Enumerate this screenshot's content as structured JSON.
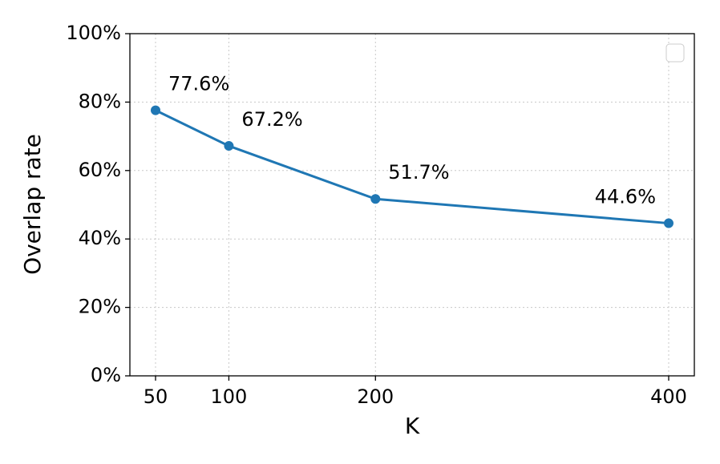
{
  "chart_data": {
    "type": "line",
    "x_label": "K",
    "y_label": "Overlap rate",
    "x": [
      50,
      100,
      200,
      400
    ],
    "series": [
      {
        "color": "#1f77b4",
        "values": [
          77.6,
          67.2,
          51.7,
          44.6
        ],
        "value_labels": [
          "77.6%",
          "67.2%",
          "51.7%",
          "44.6%"
        ]
      }
    ],
    "xlim": [
      32.5,
      417.5
    ],
    "xticks": [
      50,
      100,
      200,
      400
    ],
    "ylim": [
      0,
      100
    ],
    "yticks": [
      {
        "value": 0,
        "label": "0%"
      },
      {
        "value": 20,
        "label": "20%"
      },
      {
        "value": 40,
        "label": "40%"
      },
      {
        "value": 60,
        "label": "60%"
      },
      {
        "value": 80,
        "label": "80%"
      },
      {
        "value": 100,
        "label": "100%"
      }
    ],
    "grid": true
  }
}
